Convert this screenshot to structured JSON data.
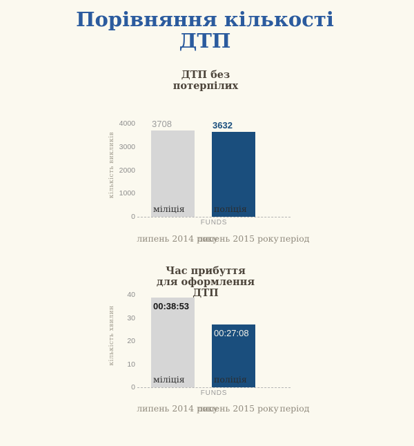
{
  "header": {
    "title_line1": "Порівняння кількості",
    "title_line2": "ДТП"
  },
  "colors": {
    "background": "#FBF9EF",
    "title_blue": "#2B5B9E",
    "bar_gray": "#D6D6D6",
    "bar_blue": "#1A4E7D",
    "axis_text": "#8C8C8C",
    "category_text": "#918B7E",
    "chart_title_text": "#4C443A"
  },
  "chart_data": [
    {
      "type": "bar",
      "title_lines": [
        "ДТП без",
        "потерпілих"
      ],
      "title": "ДТП без потерпілих",
      "ylabel": "кількість викликів",
      "xlabel": "FUNDS",
      "ylim": [
        0,
        4000
      ],
      "yticks": [
        0,
        1000,
        2000,
        3000,
        4000
      ],
      "grid": false,
      "legend": "none",
      "x_category_labels": [
        "липень 2014 року",
        "липень 2015 року",
        "період"
      ],
      "categories": [
        "міліція",
        "поліція"
      ],
      "series": [
        {
          "name": "міліція",
          "value": 3708,
          "value_label": "3708",
          "bar_color": "#D6D6D6",
          "label_position": "above",
          "label_color": "#9C9C9C",
          "label_bold": false
        },
        {
          "name": "поліція",
          "value": 3632,
          "value_label": "3632",
          "bar_color": "#1A4E7D",
          "label_position": "above",
          "label_color": "#1A4E7D",
          "label_bold": true
        }
      ]
    },
    {
      "type": "bar",
      "title_lines": [
        "Час прибуття",
        "для оформлення",
        "ДТП"
      ],
      "title": "Час прибуття для оформлення ДТП",
      "ylabel": "кількість хвилин",
      "xlabel": "FUNDS",
      "ylim": [
        0,
        40
      ],
      "yticks": [
        0,
        10,
        20,
        30,
        40
      ],
      "grid": false,
      "legend": "none",
      "x_category_labels": [
        "липень 2014 року",
        "липень 2015 року",
        "період"
      ],
      "categories": [
        "міліція",
        "поліція"
      ],
      "series": [
        {
          "name": "міліція",
          "value": 38.88,
          "value_label": "00:38:53",
          "bar_color": "#D6D6D6",
          "label_position": "inside",
          "label_color": "#151515",
          "label_bold": true
        },
        {
          "name": "поліція",
          "value": 27.13,
          "value_label": "00:27:08",
          "bar_color": "#1A4E7D",
          "label_position": "inside",
          "label_color": "#F4F2E9",
          "label_bold": false
        }
      ]
    }
  ]
}
